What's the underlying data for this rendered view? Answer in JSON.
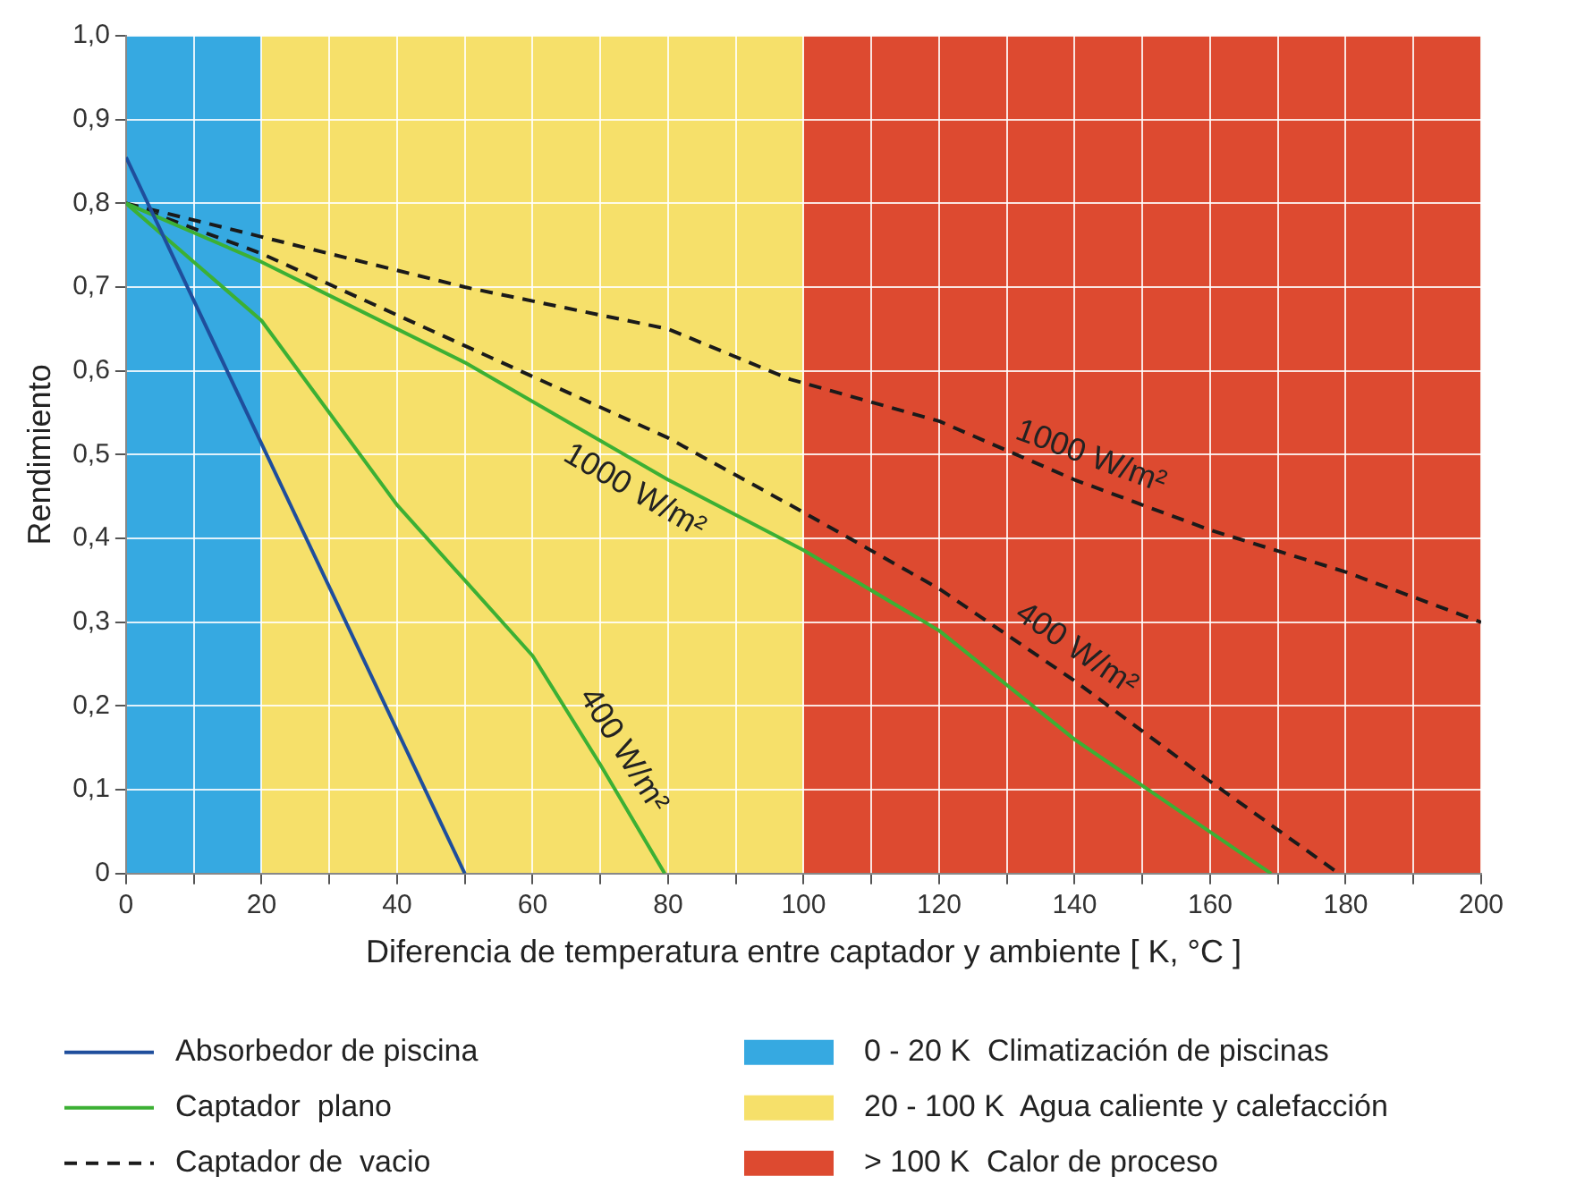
{
  "chart_data": {
    "type": "line",
    "xlabel": "Diferencia de temperatura entre captador y ambiente [ K, °C ]",
    "ylabel": "Rendimiento",
    "xlim": [
      0,
      200
    ],
    "xticks": [
      0,
      {
        "value": 10,
        "label": null
      },
      20,
      {
        "value": 30,
        "label": null
      },
      40,
      {
        "value": 50,
        "label": null
      },
      60,
      {
        "value": 70,
        "label": null
      },
      80,
      {
        "value": 90,
        "label": null
      },
      100,
      {
        "value": 110,
        "label": null
      },
      120,
      {
        "value": 130,
        "label": null
      },
      140,
      {
        "value": 150,
        "label": null
      },
      160,
      {
        "value": 170,
        "label": null
      },
      180,
      {
        "value": 190,
        "label": null
      },
      200
    ],
    "ylim": [
      0,
      1
    ],
    "yticks": [
      0,
      {
        "value": 0.1,
        "label": "0,1"
      },
      {
        "value": 0.2,
        "label": "0,2"
      },
      {
        "value": 0.3,
        "label": "0,3"
      },
      {
        "value": 0.4,
        "label": "0,4"
      },
      {
        "value": 0.5,
        "label": "0,5"
      },
      {
        "value": 0.6,
        "label": "0,6"
      },
      {
        "value": 0.7,
        "label": "0,7"
      },
      {
        "value": 0.8,
        "label": "0,8"
      },
      {
        "value": 0.9,
        "label": "0,9"
      },
      {
        "value": 1,
        "label": "1,0"
      }
    ],
    "grid": true,
    "legend": "bottom",
    "series": [
      {
        "name": "Absorbedor de piscina",
        "color": "#1f4e9c",
        "line_style": "solid",
        "x": [
          0,
          50
        ],
        "values": [
          0.855,
          0
        ]
      },
      {
        "name": "Captador  plano",
        "color": "#3cb034",
        "line_style": "solid",
        "x": [
          0,
          20,
          30,
          50,
          80,
          100,
          120,
          140,
          169
        ],
        "values": [
          0.8,
          0.73,
          0.69,
          0.61,
          0.47,
          0.386,
          0.29,
          0.16,
          0
        ]
      },
      {
        "color": "#3cb034",
        "line_style": "solid",
        "x": [
          0,
          10,
          20,
          40,
          50,
          60,
          70,
          79.5
        ],
        "values": [
          0.8,
          0.73,
          0.66,
          0.44,
          0.35,
          0.26,
          0.13,
          0
        ]
      },
      {
        "name": "Captador de  vacio",
        "color": "#1a1a1a",
        "line_style": "dashed",
        "x": [
          0,
          20,
          50,
          80,
          98,
          120,
          140,
          160,
          180,
          200
        ],
        "values": [
          0.8,
          0.76,
          0.7,
          0.65,
          0.59,
          0.54,
          0.47,
          0.41,
          0.36,
          0.3
        ]
      },
      {
        "color": "#1a1a1a",
        "line_style": "dashed",
        "x": [
          0,
          20,
          50,
          80,
          98,
          120,
          140,
          160,
          179
        ],
        "values": [
          0.8,
          0.74,
          0.63,
          0.52,
          0.44,
          0.34,
          0.23,
          0.11,
          0
        ]
      }
    ],
    "bands": [
      {
        "axis": "x",
        "from": 0,
        "to": 20,
        "label": "0 - 20 K  Climatización de piscinas",
        "color": "#36a9e1"
      },
      {
        "axis": "x",
        "from": 20,
        "to": 100,
        "label": "20 - 100 K  Agua caliente y calefacción",
        "color": "#f6e06a"
      },
      {
        "axis": "x",
        "from": 100,
        "to": 200,
        "label": "> 100 K  Calor de proceso",
        "color": "#dd4a30"
      }
    ],
    "annotations": [
      {
        "text": "1000 W/m²",
        "x": 141,
        "y": 0.467
      },
      {
        "text": "1000 W/m²",
        "x": 77,
        "y": 0.484
      },
      {
        "text": "400 W/m²",
        "x": 138,
        "y": 0.241
      },
      {
        "text": "400 W/m²",
        "x": 70,
        "y": 0.13
      }
    ]
  }
}
